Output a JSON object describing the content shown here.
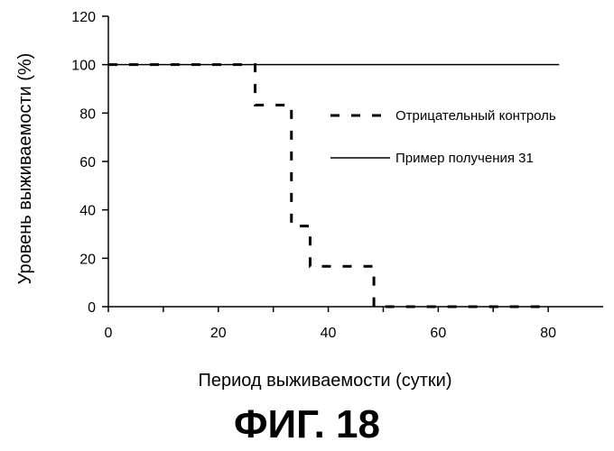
{
  "chart_data": {
    "type": "line",
    "xlabel": "Период выживаемости (сутки)",
    "ylabel": "Уровень выживаемости (%)",
    "xlim": [
      0,
      90
    ],
    "ylim": [
      0,
      120
    ],
    "x_ticks": [
      0,
      20,
      40,
      60,
      80
    ],
    "y_ticks": [
      0,
      20,
      40,
      60,
      80,
      100,
      120
    ],
    "grid": false,
    "legend_position": "right-middle",
    "series": [
      {
        "name": "Отрицательный контроль",
        "style": "dashed",
        "color": "#000000",
        "x": [
          0,
          26.7,
          26.7,
          33.3,
          33.3,
          36.7,
          36.7,
          48.3,
          48.3,
          80.3
        ],
        "y": [
          100,
          100,
          83.3,
          83.3,
          33.3,
          33.3,
          16.7,
          16.7,
          0,
          0
        ]
      },
      {
        "name": "Пример получения 31",
        "style": "solid",
        "color": "#000000",
        "x": [
          0,
          82
        ],
        "y": [
          100,
          100
        ]
      }
    ]
  },
  "figure_caption": "ФИГ. 18"
}
